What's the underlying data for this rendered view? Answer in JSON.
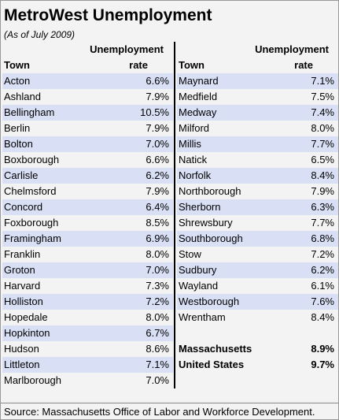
{
  "title": "MetroWest Unemployment",
  "subtitle": "(As of July 2009)",
  "tables": [
    {
      "header": {
        "town": "Town",
        "rate": [
          "Unemployment",
          "rate"
        ]
      },
      "rows": [
        [
          "Acton",
          "6.6%"
        ],
        [
          "Ashland",
          "7.9%"
        ],
        [
          "Bellingham",
          "10.5%"
        ],
        [
          "Berlin",
          "7.9%"
        ],
        [
          "Bolton",
          "7.0%"
        ],
        [
          "Boxborough",
          "6.6%"
        ],
        [
          "Carlisle",
          "6.2%"
        ],
        [
          "Chelmsford",
          "7.9%"
        ],
        [
          "Concord",
          "6.4%"
        ],
        [
          "Foxborough",
          "8.5%"
        ],
        [
          "Framingham",
          "6.9%"
        ],
        [
          "Franklin",
          "8.0%"
        ],
        [
          "Groton",
          "7.0%"
        ],
        [
          "Harvard",
          "7.3%"
        ],
        [
          "Holliston",
          "7.2%"
        ],
        [
          "Hopedale",
          "8.0%"
        ],
        [
          "Hopkinton",
          "6.7%"
        ],
        [
          "Hudson",
          "8.6%"
        ],
        [
          "Littleton",
          "7.1%"
        ],
        [
          "Marlborough",
          "7.0%"
        ]
      ]
    },
    {
      "header": {
        "town": "Town",
        "rate": [
          "Unemployment",
          "rate"
        ]
      },
      "rows": [
        [
          "Maynard",
          "7.1%"
        ],
        [
          "Medfield",
          "7.5%"
        ],
        [
          "Medway",
          "7.4%"
        ],
        [
          "Milford",
          "8.0%"
        ],
        [
          "Millis",
          "7.7%"
        ],
        [
          "Natick",
          "6.5%"
        ],
        [
          "Norfolk",
          "8.4%"
        ],
        [
          "Northborough",
          "7.9%"
        ],
        [
          "Sherborn",
          "6.3%"
        ],
        [
          "Shrewsbury",
          "7.7%"
        ],
        [
          "Southborough",
          "6.8%"
        ],
        [
          "Stow",
          "7.2%"
        ],
        [
          "Sudbury",
          "6.2%"
        ],
        [
          "Wayland",
          "6.1%"
        ],
        [
          "Westborough",
          "7.6%"
        ],
        [
          "Wrentham",
          "8.4%"
        ]
      ],
      "summary": [
        [
          "Massachusetts",
          "8.9%"
        ],
        [
          "United States",
          "9.7%"
        ]
      ]
    }
  ],
  "source": "Source: Massachusetts Office of Labor and Workforce Development."
}
